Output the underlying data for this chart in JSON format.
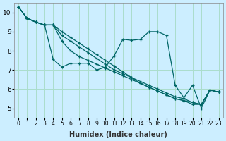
{
  "xlabel": "Humidex (Indice chaleur)",
  "ylabel": "",
  "bg_color": "#cceeff",
  "grid_color": "#aaddcc",
  "line_color": "#006666",
  "xlim": [
    -0.5,
    23.5
  ],
  "ylim": [
    4.5,
    10.5
  ],
  "yticks": [
    5,
    6,
    7,
    8,
    9,
    10
  ],
  "xtick_labels": [
    "0",
    "1",
    "2",
    "3",
    "4",
    "5",
    "6",
    "7",
    "8",
    "9",
    "10",
    "11",
    "12",
    "13",
    "14",
    "15",
    "16",
    "17",
    "18",
    "19",
    "20",
    "21",
    "22",
    "23"
  ],
  "lines": [
    [
      10.3,
      9.7,
      9.5,
      9.35,
      7.55,
      7.15,
      7.35,
      7.35,
      7.35,
      7.0,
      7.15,
      7.75,
      8.6,
      8.55,
      8.6,
      9.0,
      9.0,
      8.8,
      6.2,
      5.55,
      6.2,
      5.0,
      5.95,
      5.85
    ],
    [
      10.3,
      9.7,
      9.5,
      9.35,
      9.35,
      8.5,
      8.0,
      7.7,
      7.5,
      7.3,
      7.1,
      6.9,
      6.7,
      6.5,
      6.3,
      6.1,
      5.9,
      5.7,
      5.5,
      5.4,
      5.3,
      5.2,
      5.95,
      5.85
    ],
    [
      10.3,
      9.7,
      9.5,
      9.35,
      9.35,
      8.8,
      8.5,
      8.2,
      7.9,
      7.6,
      7.3,
      7.0,
      6.8,
      6.6,
      6.4,
      6.2,
      6.0,
      5.8,
      5.6,
      5.5,
      5.3,
      5.2,
      5.95,
      5.85
    ],
    [
      10.3,
      9.7,
      9.5,
      9.35,
      9.35,
      9.0,
      8.7,
      8.4,
      8.1,
      7.8,
      7.5,
      7.2,
      6.9,
      6.6,
      6.3,
      6.1,
      5.9,
      5.7,
      5.5,
      5.4,
      5.2,
      5.2,
      5.95,
      5.85
    ]
  ]
}
